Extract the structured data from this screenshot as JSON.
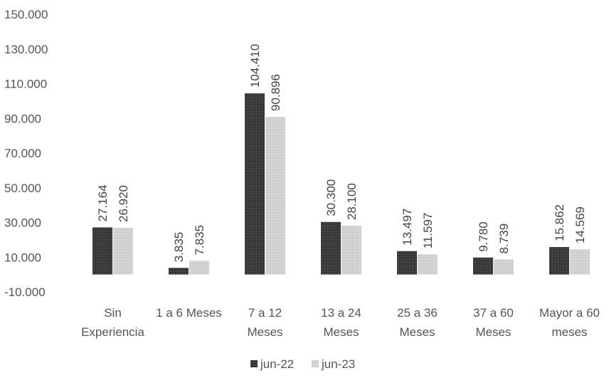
{
  "chart_data": {
    "type": "bar",
    "categories": [
      [
        "Sin",
        "Experiencia"
      ],
      [
        "1 a 6 Meses"
      ],
      [
        "7 a 12",
        "Meses"
      ],
      [
        "13 a 24",
        "Meses"
      ],
      [
        "25 a 36",
        "Meses"
      ],
      [
        "37 a 60",
        "Meses"
      ],
      [
        "Mayor a 60",
        "meses"
      ]
    ],
    "series": [
      {
        "name": "jun-22",
        "color": "#3c3c3c",
        "values": [
          27164,
          3835,
          104410,
          30300,
          13497,
          9780,
          15862
        ],
        "labels": [
          "27.164",
          "3.835",
          "104.410",
          "30.300",
          "13.497",
          "9.780",
          "15.862"
        ]
      },
      {
        "name": "jun-23",
        "color": "#cfcfcf",
        "values": [
          26920,
          7835,
          90896,
          28100,
          11597,
          8739,
          14569
        ],
        "labels": [
          "26.920",
          "7.835",
          "90.896",
          "28.100",
          "11.597",
          "8.739",
          "14.569"
        ]
      }
    ],
    "yticks": [
      {
        "value": 150000,
        "label": "150.000"
      },
      {
        "value": 130000,
        "label": "130.000"
      },
      {
        "value": 110000,
        "label": "110.000"
      },
      {
        "value": 90000,
        "label": "90.000"
      },
      {
        "value": 70000,
        "label": "70.000"
      },
      {
        "value": 50000,
        "label": "50.000"
      },
      {
        "value": 30000,
        "label": "30.000"
      },
      {
        "value": 10000,
        "label": "10.000"
      },
      {
        "value": -10000,
        "label": "-10.000"
      }
    ],
    "ylim": [
      -10000,
      150000
    ],
    "grid": false,
    "legend_position": "bottom-center"
  }
}
